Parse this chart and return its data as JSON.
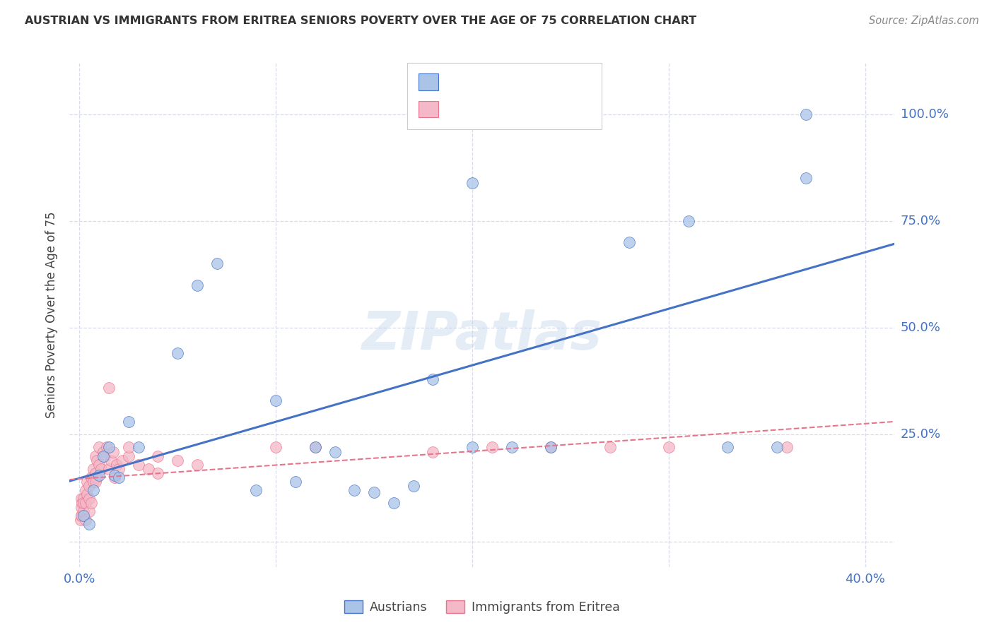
{
  "title": "AUSTRIAN VS IMMIGRANTS FROM ERITREA SENIORS POVERTY OVER THE AGE OF 75 CORRELATION CHART",
  "source": "Source: ZipAtlas.com",
  "ylabel_label": "Seniors Poverty Over the Age of 75",
  "background_color": "#ffffff",
  "grid_color": "#d8dce8",
  "austrians_color": "#aac4e8",
  "austrians_line_color": "#4472c4",
  "eritrea_color": "#f4b8c8",
  "eritrea_line_color": "#e8748c",
  "austrians_x": [
    0.002,
    0.005,
    0.007,
    0.01,
    0.012,
    0.015,
    0.018,
    0.02,
    0.025,
    0.03,
    0.05,
    0.06,
    0.07,
    0.09,
    0.1,
    0.11,
    0.12,
    0.13,
    0.14,
    0.15,
    0.16,
    0.17,
    0.18,
    0.2,
    0.22,
    0.24,
    0.26,
    0.28,
    0.31,
    0.33,
    0.355,
    0.37,
    0.2,
    0.37
  ],
  "austrians_y": [
    0.06,
    0.04,
    0.12,
    0.155,
    0.2,
    0.22,
    0.155,
    0.15,
    0.28,
    0.22,
    0.44,
    0.6,
    0.65,
    0.12,
    0.33,
    0.14,
    0.22,
    0.21,
    0.12,
    0.115,
    0.09,
    0.13,
    0.38,
    0.22,
    0.22,
    0.22,
    1.0,
    0.7,
    0.75,
    0.22,
    0.22,
    1.0,
    0.84,
    0.85
  ],
  "eritrea_x": [
    0.0005,
    0.0008,
    0.001,
    0.001,
    0.001,
    0.0015,
    0.002,
    0.002,
    0.002,
    0.003,
    0.003,
    0.003,
    0.004,
    0.004,
    0.005,
    0.005,
    0.005,
    0.006,
    0.006,
    0.007,
    0.007,
    0.008,
    0.008,
    0.009,
    0.009,
    0.01,
    0.01,
    0.011,
    0.012,
    0.013,
    0.014,
    0.015,
    0.016,
    0.017,
    0.018,
    0.019,
    0.02,
    0.022,
    0.025,
    0.03,
    0.035,
    0.04,
    0.05,
    0.06,
    0.015,
    0.04,
    0.025,
    0.008,
    0.1,
    0.12,
    0.18,
    0.21,
    0.24,
    0.27,
    0.3,
    0.36
  ],
  "eritrea_y": [
    0.05,
    0.06,
    0.08,
    0.06,
    0.1,
    0.09,
    0.07,
    0.1,
    0.09,
    0.05,
    0.09,
    0.12,
    0.11,
    0.14,
    0.07,
    0.1,
    0.13,
    0.09,
    0.15,
    0.14,
    0.17,
    0.16,
    0.2,
    0.15,
    0.19,
    0.18,
    0.22,
    0.17,
    0.21,
    0.2,
    0.22,
    0.17,
    0.19,
    0.21,
    0.15,
    0.18,
    0.17,
    0.19,
    0.2,
    0.18,
    0.17,
    0.16,
    0.19,
    0.18,
    0.36,
    0.2,
    0.22,
    0.14,
    0.22,
    0.22,
    0.21,
    0.22,
    0.22,
    0.22,
    0.22,
    0.22
  ],
  "xlim": [
    -0.005,
    0.415
  ],
  "ylim": [
    -0.06,
    1.12
  ],
  "x_ticks": [
    0.0,
    0.1,
    0.2,
    0.3,
    0.4
  ],
  "y_ticks": [
    0.0,
    0.25,
    0.5,
    0.75,
    1.0
  ]
}
